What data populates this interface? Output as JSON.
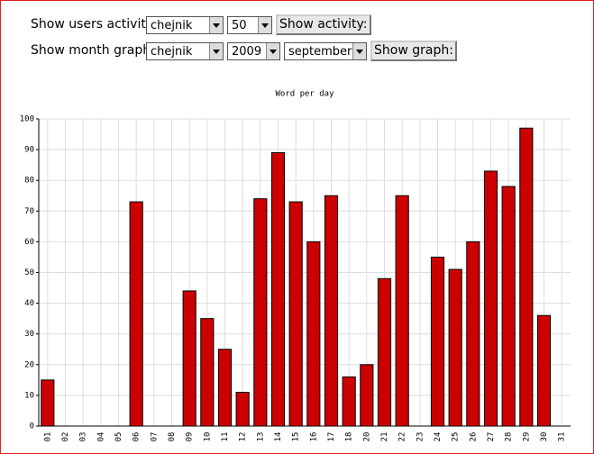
{
  "form": {
    "rows": [
      {
        "label": "Show users activity:",
        "selects": [
          "chejnik",
          "50"
        ],
        "button": "Show activity:"
      },
      {
        "label": "Show month graph:",
        "selects": [
          "chejnik",
          "2009",
          "september"
        ],
        "button": "Show graph:"
      }
    ]
  },
  "chart_data": {
    "type": "bar",
    "title": "Word per day",
    "categories": [
      "01",
      "02",
      "03",
      "04",
      "05",
      "06",
      "07",
      "08",
      "09",
      "10",
      "11",
      "12",
      "13",
      "14",
      "15",
      "16",
      "17",
      "18",
      "20",
      "21",
      "22",
      "23",
      "24",
      "25",
      "26",
      "27",
      "28",
      "29",
      "30",
      "31"
    ],
    "values": [
      15,
      0,
      0,
      0,
      0,
      73,
      0,
      0,
      44,
      35,
      25,
      11,
      74,
      89,
      73,
      60,
      75,
      16,
      20,
      48,
      75,
      0,
      55,
      51,
      60,
      83,
      78,
      97,
      36,
      0
    ],
    "color": "#cc0000",
    "ylim": [
      0,
      100
    ],
    "yticks": [
      0,
      10,
      20,
      30,
      40,
      50,
      60,
      70,
      80,
      90,
      100
    ],
    "grid": true
  }
}
